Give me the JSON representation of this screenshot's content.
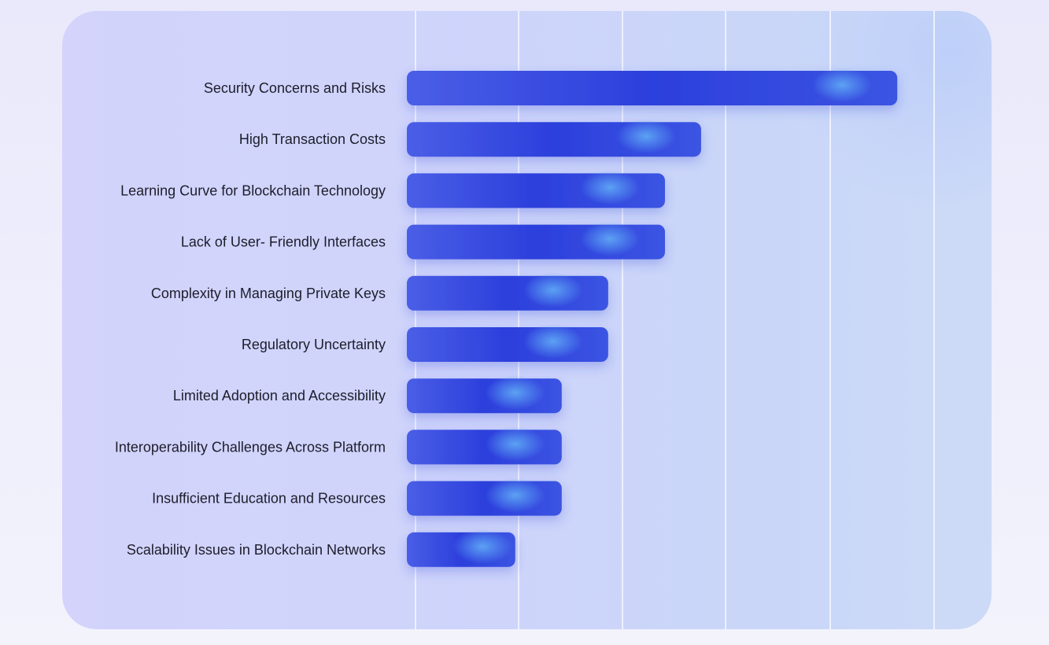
{
  "chart_data": {
    "type": "bar",
    "orientation": "horizontal",
    "categories": [
      "Security Concerns and Risks",
      "High Transaction Costs",
      "Learning Curve for Blockchain Technology",
      "Lack of User- Friendly Interfaces",
      "Complexity in Managing Private Keys",
      "Regulatory Uncertainty",
      "Limited Adoption and Accessibility",
      "Interoperability Challenges Across Platform",
      "Insufficient Education and Resources",
      "Scalability Issues in Blockchain Networks"
    ],
    "values": [
      9.5,
      5.7,
      5.0,
      5.0,
      3.9,
      3.9,
      3.0,
      3.0,
      3.0,
      2.1
    ],
    "xlim": [
      0,
      10
    ],
    "grid": true,
    "legend": "none",
    "colors": {
      "bar": "#2e44dc",
      "bar_highlight": "#4a8ef0",
      "grid": "#eef0ff",
      "label": "#1d1d2b"
    }
  }
}
